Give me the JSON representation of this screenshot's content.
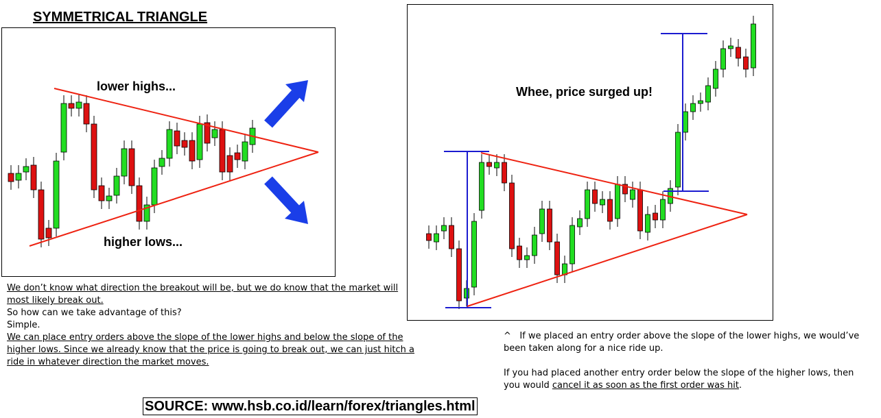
{
  "header": {
    "title": "SYMMETRICAL TRIANGLE"
  },
  "left_panel": {
    "annotations": [
      "lower highs...",
      "higher lows..."
    ]
  },
  "right_panel": {
    "annotation": "Whee, price surged up!"
  },
  "left_text": {
    "paragraph1": "We don’t know what direction the breakout will be, but we do know that the market will most likely break out.",
    "question": "So how can we take advantage of this?",
    "answer": "Simple.",
    "paragraph2": "We can place entry orders above the slope of the lower highs and below the slope of the higher lows. Since we already know that the price is going to break out, we can just hitch a ride in whatever direction the market moves."
  },
  "right_text": {
    "caret": "^",
    "paragraph1": "If we placed an entry order above the slope of the lower highs, we would’ve been taken along for a nice ride up.",
    "paragraph2_before": "If you had placed another entry order below the slope of the higher lows, then you would ",
    "paragraph2_underlined": "cancel it as soon as the first order was hit",
    "paragraph2_after": "."
  },
  "source": "SOURCE: www.hsb.co.id/learn/forex/triangles.html"
}
